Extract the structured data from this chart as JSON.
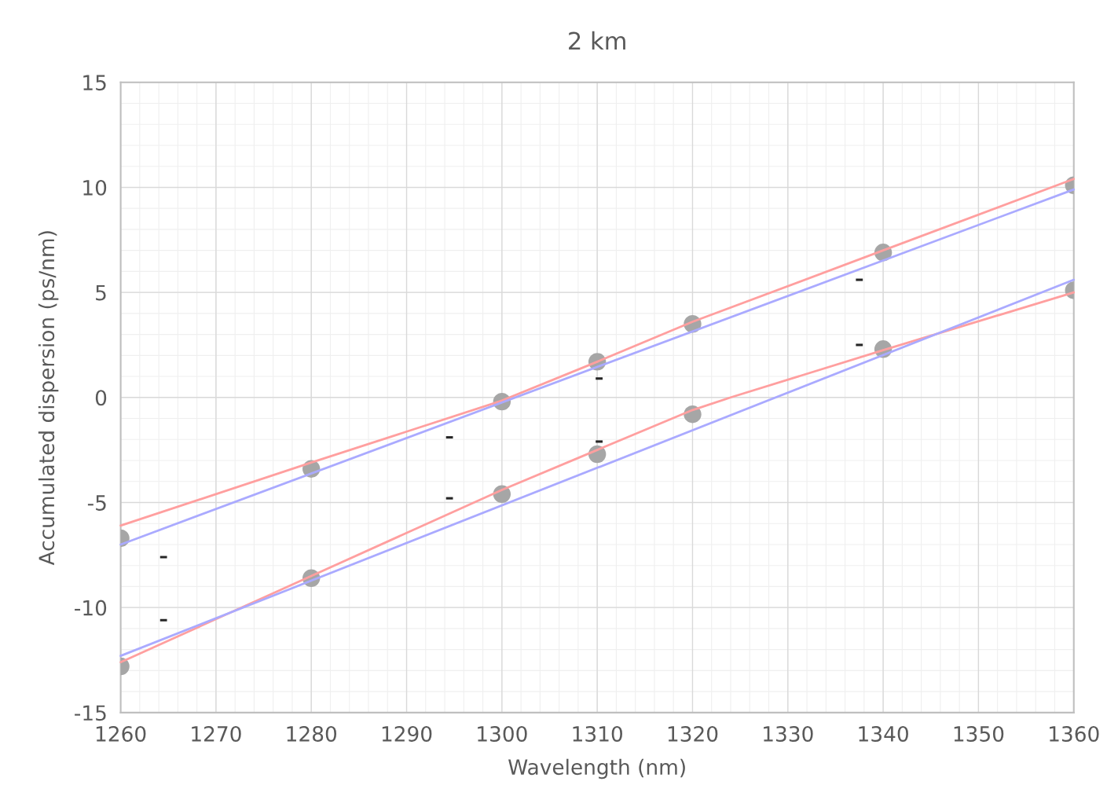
{
  "chart_data": {
    "type": "line",
    "title": "2 km",
    "xlabel": "Wavelength (nm)",
    "ylabel": "Accumulated dispersion (ps/nm)",
    "xlim": [
      1260,
      1360
    ],
    "xticks": [
      1260,
      1270,
      1280,
      1290,
      1300,
      1310,
      1320,
      1330,
      1340,
      1350,
      1360
    ],
    "ylim": [
      -15,
      15
    ],
    "yticks": [
      -15,
      -10,
      -5,
      0,
      5,
      10,
      15
    ],
    "grid": true,
    "legend": false,
    "series": [
      {
        "color": "#ff9f9f",
        "x": [
          1260,
          1280,
          1300,
          1310,
          1320,
          1324,
          1340,
          1360
        ],
        "values": [
          -12.6,
          -8.5,
          -4.4,
          -2.5,
          -0.6,
          0,
          2.25,
          5.0
        ],
        "marker": "none"
      },
      {
        "color": "#aaaaff",
        "x": [
          1260,
          1360
        ],
        "values": [
          -12.3,
          5.6
        ],
        "marker": "none"
      },
      {
        "color": "#ff9f9f",
        "x": [
          1260,
          1280,
          1300,
          1310,
          1320,
          1340,
          1360
        ],
        "values": [
          -6.1,
          -3.1,
          -0.15,
          1.7,
          3.6,
          7.0,
          10.4
        ],
        "marker": "none"
      },
      {
        "color": "#aaaaff",
        "x": [
          1260,
          1360
        ],
        "values": [
          -7.0,
          9.9
        ],
        "marker": "none"
      },
      {
        "type": "scatter",
        "color": "#a6a6a6",
        "marker": "circle",
        "x": [
          1260,
          1280,
          1300,
          1310,
          1320,
          1340,
          1360
        ],
        "values": [
          -6.7,
          -3.4,
          -0.2,
          1.7,
          3.5,
          6.9,
          10.1
        ]
      },
      {
        "type": "scatter",
        "color": "#a6a6a6",
        "marker": "circle",
        "x": [
          1260,
          1280,
          1300,
          1310,
          1320,
          1340,
          1360
        ],
        "values": [
          -12.8,
          -8.6,
          -4.6,
          -2.7,
          -0.8,
          2.3,
          5.1
        ]
      },
      {
        "type": "scatter",
        "color": "#262626",
        "marker": "square",
        "x": [
          1264.5,
          1294.5,
          1310.2,
          1337.5
        ],
        "values": [
          -7.6,
          -1.9,
          0.9,
          5.6
        ]
      },
      {
        "type": "scatter",
        "color": "#262626",
        "marker": "square",
        "x": [
          1264.5,
          1294.5,
          1310.2,
          1337.5
        ],
        "values": [
          -10.6,
          -4.8,
          -2.1,
          2.5
        ]
      }
    ]
  }
}
